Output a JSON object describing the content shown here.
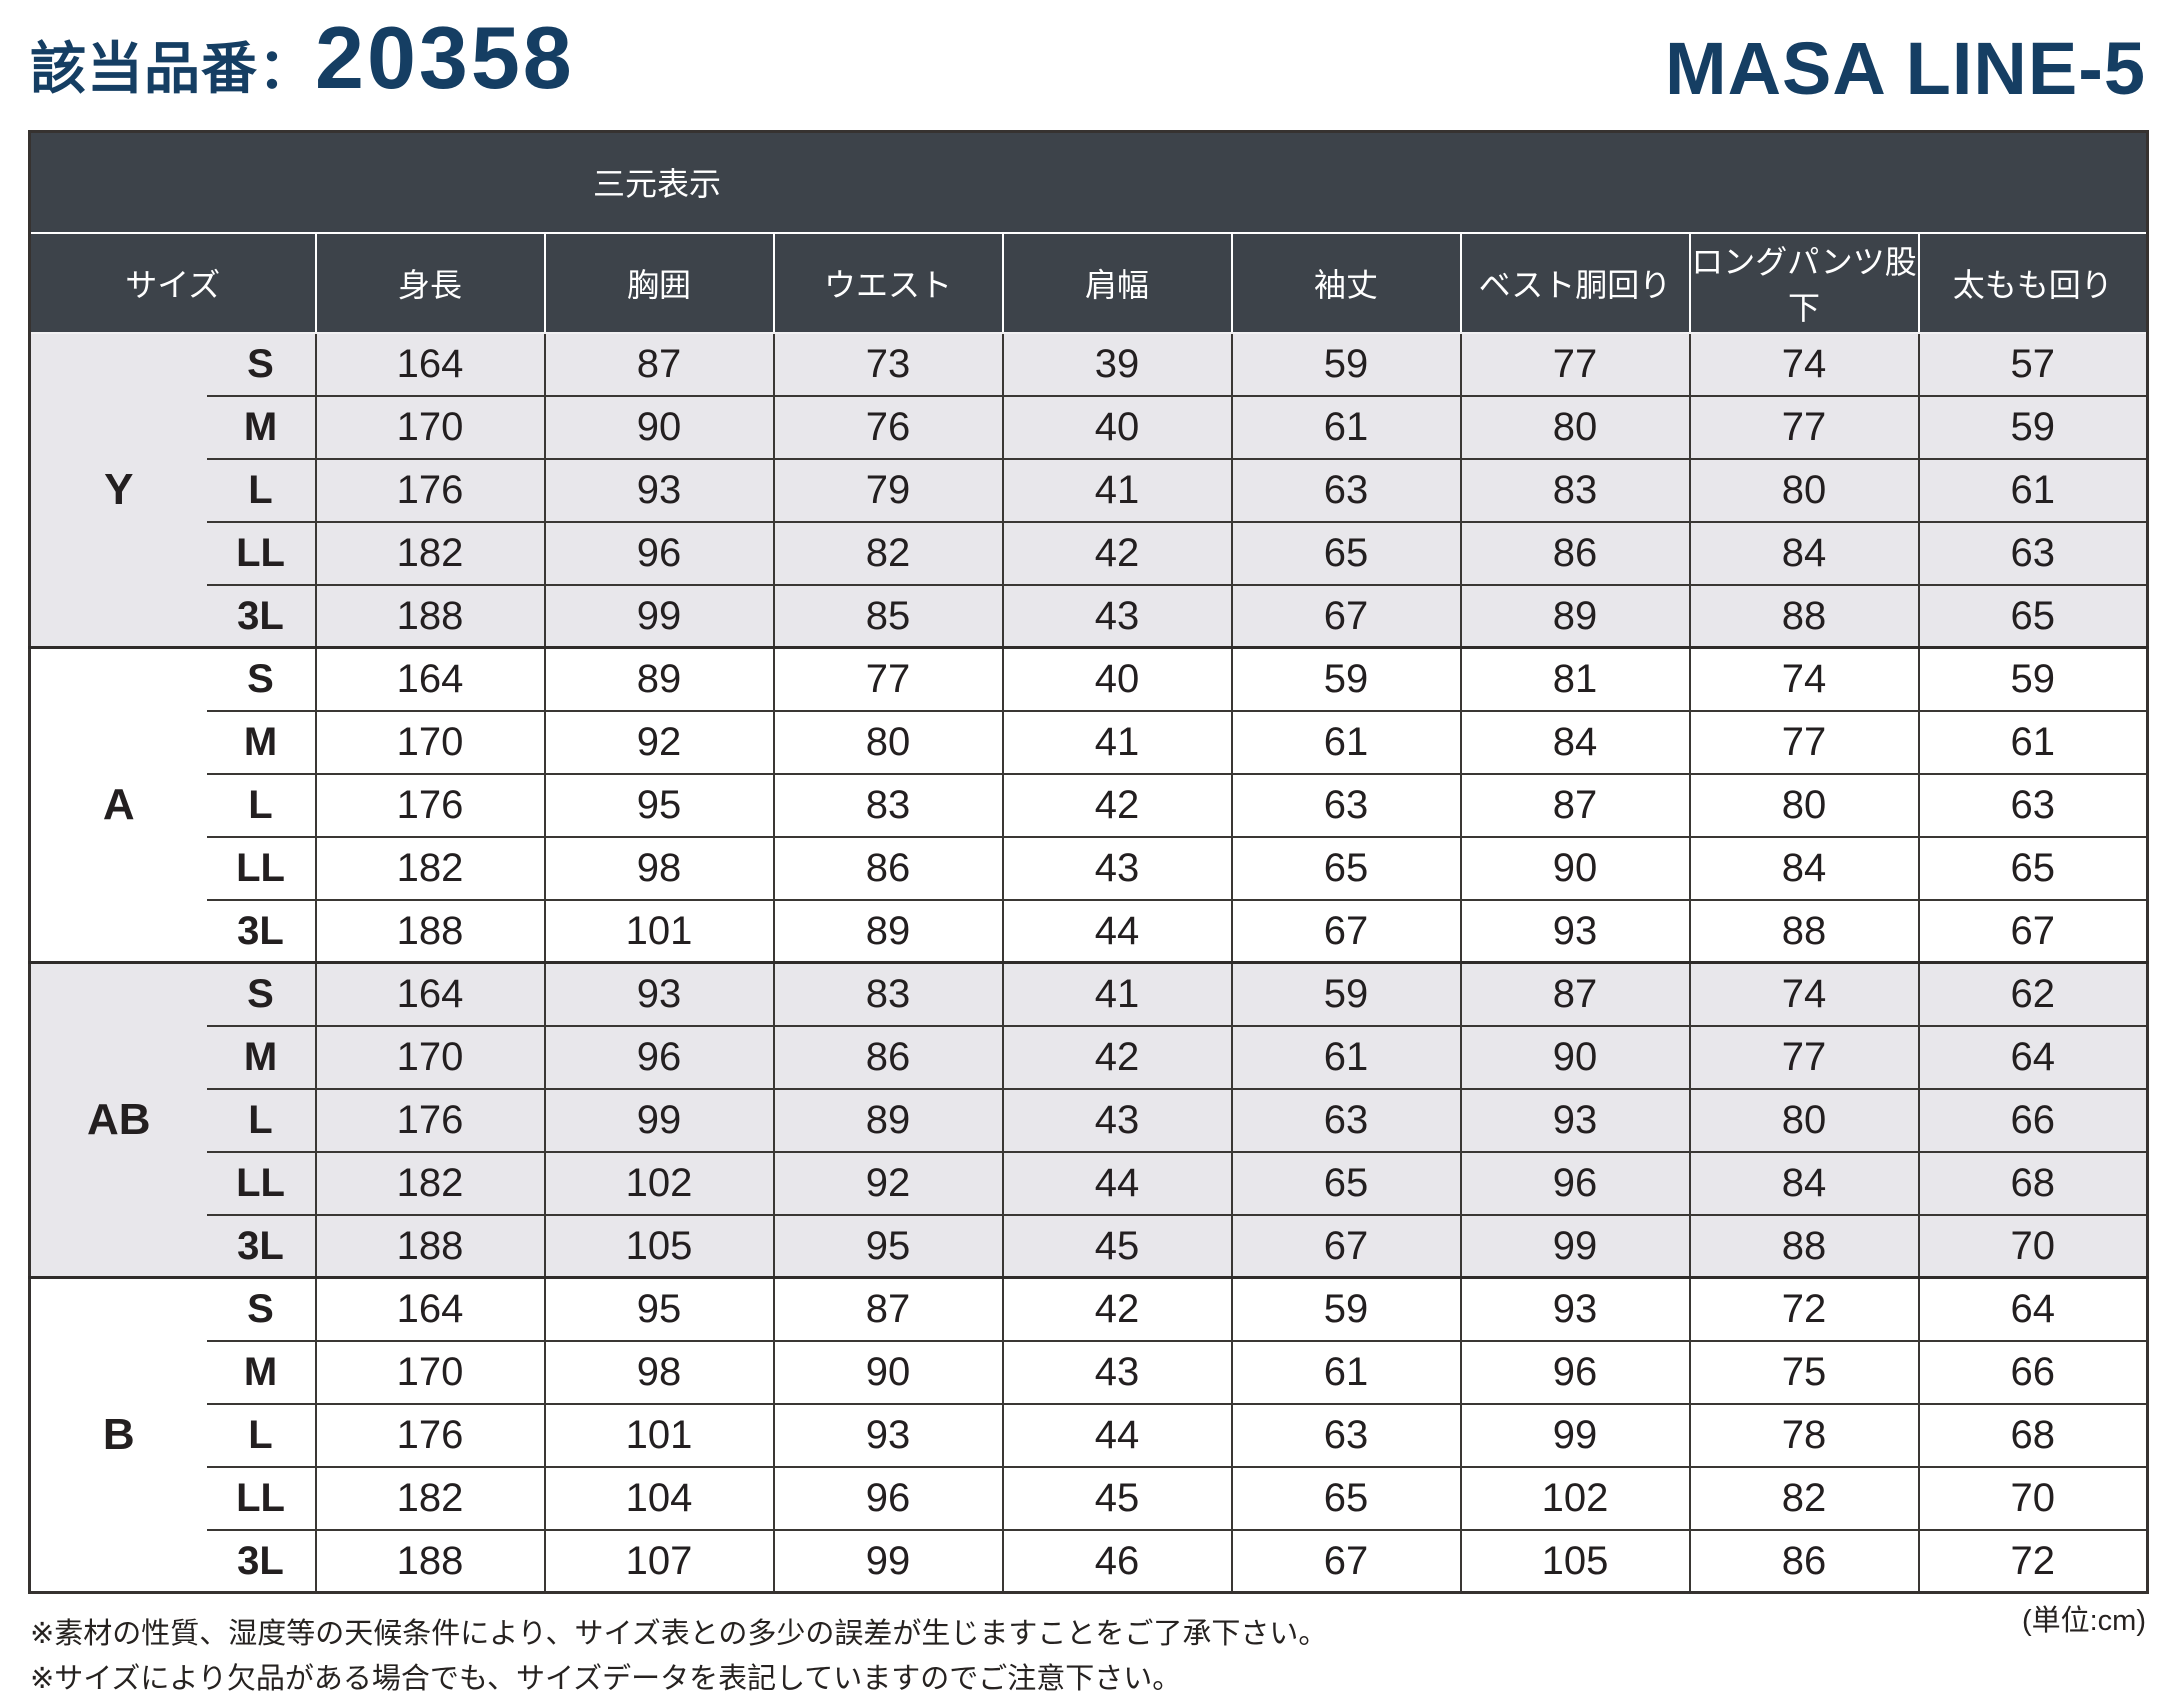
{
  "page": {
    "product_label": "該当品番：",
    "product_number": "20358",
    "brand": "MASA LINE-5",
    "unit_note": "(単位:cm)",
    "footnotes": [
      "※素材の性質、湿度等の天候条件により、サイズ表との多少の誤差が生じますことをご了承下さい。",
      "※サイズにより欠品がある場合でも、サイズデータを表記していますのでご注意下さい。"
    ]
  },
  "table": {
    "banner": "三元表示",
    "columns": [
      "サイズ",
      "身長",
      "胸囲",
      "ウエスト",
      "肩幅",
      "袖丈",
      "ベスト胴回り",
      "ロングパンツ股下",
      "太もも回り"
    ],
    "groups": [
      {
        "name": "Y",
        "rows": [
          {
            "size": "S",
            "values": [
              164,
              87,
              73,
              39,
              59,
              77,
              74,
              57
            ]
          },
          {
            "size": "M",
            "values": [
              170,
              90,
              76,
              40,
              61,
              80,
              77,
              59
            ]
          },
          {
            "size": "L",
            "values": [
              176,
              93,
              79,
              41,
              63,
              83,
              80,
              61
            ]
          },
          {
            "size": "LL",
            "values": [
              182,
              96,
              82,
              42,
              65,
              86,
              84,
              63
            ]
          },
          {
            "size": "3L",
            "values": [
              188,
              99,
              85,
              43,
              67,
              89,
              88,
              65
            ]
          }
        ]
      },
      {
        "name": "A",
        "rows": [
          {
            "size": "S",
            "values": [
              164,
              89,
              77,
              40,
              59,
              81,
              74,
              59
            ]
          },
          {
            "size": "M",
            "values": [
              170,
              92,
              80,
              41,
              61,
              84,
              77,
              61
            ]
          },
          {
            "size": "L",
            "values": [
              176,
              95,
              83,
              42,
              63,
              87,
              80,
              63
            ]
          },
          {
            "size": "LL",
            "values": [
              182,
              98,
              86,
              43,
              65,
              90,
              84,
              65
            ]
          },
          {
            "size": "3L",
            "values": [
              188,
              101,
              89,
              44,
              67,
              93,
              88,
              67
            ]
          }
        ]
      },
      {
        "name": "AB",
        "rows": [
          {
            "size": "S",
            "values": [
              164,
              93,
              83,
              41,
              59,
              87,
              74,
              62
            ]
          },
          {
            "size": "M",
            "values": [
              170,
              96,
              86,
              42,
              61,
              90,
              77,
              64
            ]
          },
          {
            "size": "L",
            "values": [
              176,
              99,
              89,
              43,
              63,
              93,
              80,
              66
            ]
          },
          {
            "size": "LL",
            "values": [
              182,
              102,
              92,
              44,
              65,
              96,
              84,
              68
            ]
          },
          {
            "size": "3L",
            "values": [
              188,
              105,
              95,
              45,
              67,
              99,
              88,
              70
            ]
          }
        ]
      },
      {
        "name": "B",
        "rows": [
          {
            "size": "S",
            "values": [
              164,
              95,
              87,
              42,
              59,
              93,
              72,
              64
            ]
          },
          {
            "size": "M",
            "values": [
              170,
              98,
              90,
              43,
              61,
              96,
              75,
              66
            ]
          },
          {
            "size": "L",
            "values": [
              176,
              101,
              93,
              44,
              63,
              99,
              78,
              68
            ]
          },
          {
            "size": "LL",
            "values": [
              182,
              104,
              96,
              45,
              65,
              102,
              82,
              70
            ]
          },
          {
            "size": "3L",
            "values": [
              188,
              107,
              99,
              46,
              67,
              105,
              86,
              72
            ]
          }
        ]
      }
    ]
  },
  "colors": {
    "accent_navy": "#153e63",
    "header_background": "#3d434a",
    "shaded_row": "#e8e7eb",
    "border_dark": "#363230"
  }
}
